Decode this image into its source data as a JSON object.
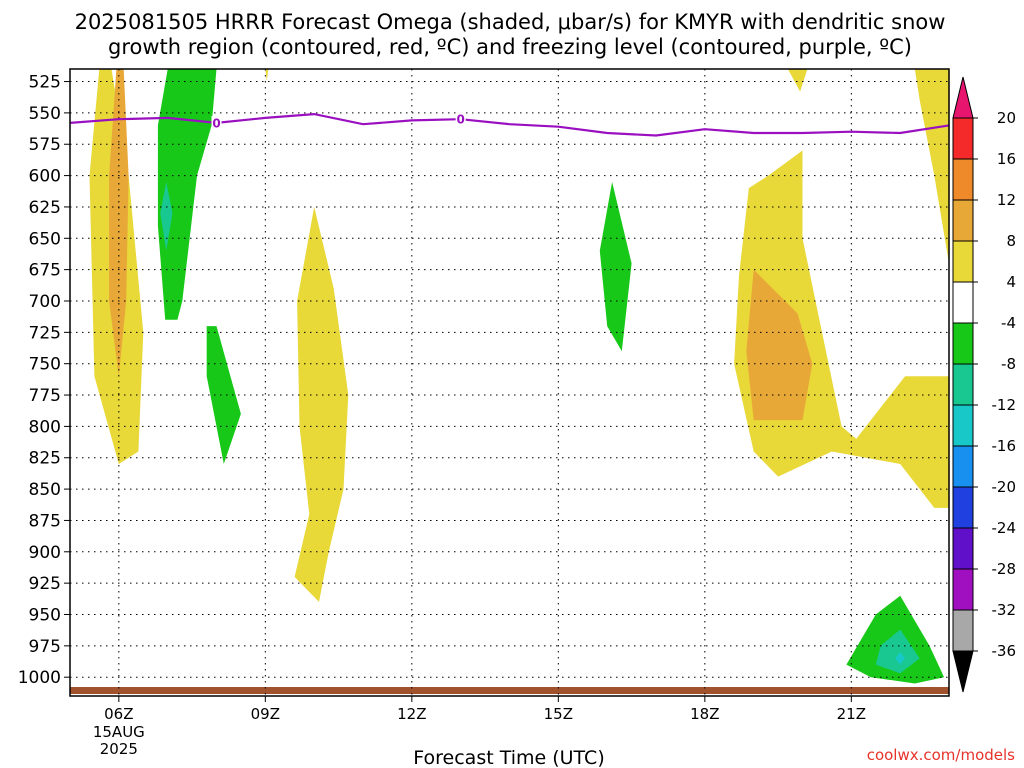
{
  "title": {
    "line1": "2025081505 HRRR Forecast Omega (shaded, μbar/s) for KMYR with dendritic snow",
    "line2": "growth region (contoured, red, ºC) and freezing level (contoured, purple, ºC)"
  },
  "credit": "coolwx.com/models",
  "credit_color": "#e8332a",
  "chart_data": {
    "type": "contour",
    "xlabel": "Forecast Time (UTC)",
    "x_ticks": [
      {
        "hour": 6,
        "label": "06Z",
        "sub": [
          "15AUG",
          "2025"
        ]
      },
      {
        "hour": 9,
        "label": "09Z"
      },
      {
        "hour": 12,
        "label": "12Z"
      },
      {
        "hour": 15,
        "label": "15Z"
      },
      {
        "hour": 18,
        "label": "18Z"
      },
      {
        "hour": 21,
        "label": "21Z"
      }
    ],
    "xlim": [
      5,
      23
    ],
    "y_ticks": [
      525,
      550,
      575,
      600,
      625,
      650,
      675,
      700,
      725,
      750,
      775,
      800,
      825,
      850,
      875,
      900,
      925,
      950,
      975,
      1000
    ],
    "ylim_hpa": [
      515,
      1015
    ],
    "grid": true,
    "colorbar": {
      "levels": [
        "20",
        "16",
        "12",
        "8",
        "4",
        "-4",
        "-8",
        "-12",
        "-16",
        "-20",
        "-24",
        "-28",
        "-32",
        "-36"
      ],
      "colors": [
        "#e8156e",
        "#f42a2a",
        "#ee8a2a",
        "#e8a838",
        "#e8d838",
        "#ffffff",
        "#18c818",
        "#18c890",
        "#18c8c8",
        "#1890f0",
        "#2040e0",
        "#6010c8",
        "#a010c0",
        "#a8a8a8",
        "#000000"
      ]
    },
    "freezing_level": {
      "color": "#9a10c0",
      "label": "0",
      "points": [
        [
          5,
          558
        ],
        [
          6,
          555
        ],
        [
          7,
          554
        ],
        [
          8,
          558
        ],
        [
          9,
          554
        ],
        [
          10,
          551
        ],
        [
          11,
          559
        ],
        [
          12,
          556
        ],
        [
          13,
          555
        ],
        [
          14,
          559
        ],
        [
          15,
          561
        ],
        [
          16,
          566
        ],
        [
          17,
          568
        ],
        [
          18,
          563
        ],
        [
          19,
          566
        ],
        [
          20,
          566
        ],
        [
          21,
          565
        ],
        [
          22,
          566
        ],
        [
          23,
          560
        ]
      ],
      "label_hours": [
        8,
        13
      ]
    },
    "terrain_color": "#a0522d",
    "omega_regions": [
      {
        "name": "rise-0600z",
        "value_class": "4 to 8",
        "color": "#e8d838",
        "points": [
          [
            5.6,
            515
          ],
          [
            5.85,
            515
          ],
          [
            6.2,
            600
          ],
          [
            6.5,
            725
          ],
          [
            6.4,
            820
          ],
          [
            6,
            830
          ],
          [
            5.5,
            760
          ],
          [
            5.4,
            600
          ]
        ]
      },
      {
        "name": "rise-0600z-core",
        "value_class": "8 to 12",
        "color": "#e8a838",
        "points": [
          [
            5.95,
            515
          ],
          [
            6.1,
            515
          ],
          [
            6.2,
            600
          ],
          [
            6.15,
            700
          ],
          [
            6,
            760
          ],
          [
            5.8,
            700
          ],
          [
            5.8,
            600
          ]
        ]
      },
      {
        "name": "sink-0700z",
        "value_class": "-4 to -8",
        "color": "#18c818",
        "points": [
          [
            7,
            515
          ],
          [
            8,
            515
          ],
          [
            7.9,
            560
          ],
          [
            7.6,
            600
          ],
          [
            7.3,
            700
          ],
          [
            7.2,
            715
          ],
          [
            6.95,
            715
          ],
          [
            6.8,
            640
          ],
          [
            6.8,
            560
          ]
        ]
      },
      {
        "name": "sink-0700z-core",
        "value_class": "-8 to -12",
        "color": "#18c890",
        "points": [
          [
            6.97,
            605
          ],
          [
            7.1,
            630
          ],
          [
            6.97,
            660
          ],
          [
            6.85,
            630
          ]
        ]
      },
      {
        "name": "sink-0800z",
        "value_class": "-4 to -8",
        "color": "#18c818",
        "points": [
          [
            7.8,
            720
          ],
          [
            8,
            720
          ],
          [
            8.5,
            790
          ],
          [
            8.15,
            830
          ],
          [
            7.8,
            760
          ]
        ]
      },
      {
        "name": "rise-1000z",
        "value_class": "4 to 8",
        "color": "#e8d838",
        "points": [
          [
            10,
            625
          ],
          [
            10.4,
            690
          ],
          [
            10.7,
            775
          ],
          [
            10.6,
            850
          ],
          [
            10.3,
            900
          ],
          [
            10.1,
            940
          ],
          [
            9.6,
            920
          ],
          [
            9.9,
            870
          ],
          [
            9.7,
            800
          ],
          [
            9.65,
            700
          ]
        ]
      },
      {
        "name": "sink-1600z",
        "value_class": "-4 to -8",
        "color": "#18c818",
        "points": [
          [
            16.1,
            605
          ],
          [
            16.5,
            670
          ],
          [
            16.3,
            740
          ],
          [
            16,
            720
          ],
          [
            15.85,
            660
          ]
        ]
      },
      {
        "name": "rise-1900z",
        "value_class": "4 to 8",
        "color": "#e8d838",
        "points": [
          [
            20,
            580
          ],
          [
            20,
            650
          ],
          [
            20.4,
            725
          ],
          [
            20.8,
            800
          ],
          [
            21.1,
            810
          ],
          [
            22.1,
            760
          ],
          [
            23,
            760
          ],
          [
            23,
            865
          ],
          [
            22.7,
            865
          ],
          [
            22,
            830
          ],
          [
            21.3,
            825
          ],
          [
            20.6,
            820
          ],
          [
            19.5,
            840
          ],
          [
            19,
            820
          ],
          [
            18.6,
            750
          ],
          [
            18.7,
            680
          ],
          [
            18.9,
            610
          ],
          [
            19.3,
            600
          ]
        ]
      },
      {
        "name": "rise-1900z-core",
        "value_class": "8 to 12",
        "color": "#e8a838",
        "points": [
          [
            19,
            675
          ],
          [
            19.9,
            710
          ],
          [
            20.2,
            750
          ],
          [
            20,
            795
          ],
          [
            19,
            795
          ],
          [
            18.85,
            740
          ]
        ]
      },
      {
        "name": "rise-2230z",
        "value_class": "4 to 8",
        "color": "#e8d838",
        "points": [
          [
            22.3,
            515
          ],
          [
            23,
            515
          ],
          [
            23,
            670
          ],
          [
            22.7,
            600
          ],
          [
            22.4,
            540
          ]
        ]
      },
      {
        "name": "rise-2000z-top",
        "value_class": "4 to 8",
        "color": "#e8d838",
        "points": [
          [
            19.7,
            515
          ],
          [
            20.1,
            515
          ],
          [
            19.95,
            533
          ]
        ]
      },
      {
        "name": "rise-0900z-top",
        "value_class": "4 to 8",
        "color": "#e8d838",
        "points": [
          [
            9.0,
            515
          ],
          [
            9.06,
            515
          ],
          [
            9.03,
            525
          ]
        ]
      },
      {
        "name": "sink-2200z",
        "value_class": "-4 to -8",
        "color": "#18c818",
        "points": [
          [
            22,
            935
          ],
          [
            22.6,
            975
          ],
          [
            22.9,
            1000
          ],
          [
            22.3,
            1005
          ],
          [
            21.4,
            1000
          ],
          [
            20.9,
            990
          ],
          [
            21.5,
            950
          ]
        ]
      },
      {
        "name": "sink-2200z-core",
        "value_class": "-8 to -12",
        "color": "#18c890",
        "points": [
          [
            22,
            962
          ],
          [
            22.4,
            985
          ],
          [
            22,
            997
          ],
          [
            21.5,
            990
          ],
          [
            21.6,
            975
          ]
        ]
      },
      {
        "name": "sink-2200z-center",
        "value_class": "-12 to -16",
        "color": "#18c8c8",
        "points": [
          [
            22,
            980
          ],
          [
            22.1,
            985
          ],
          [
            22,
            990
          ],
          [
            21.9,
            985
          ]
        ]
      }
    ]
  }
}
